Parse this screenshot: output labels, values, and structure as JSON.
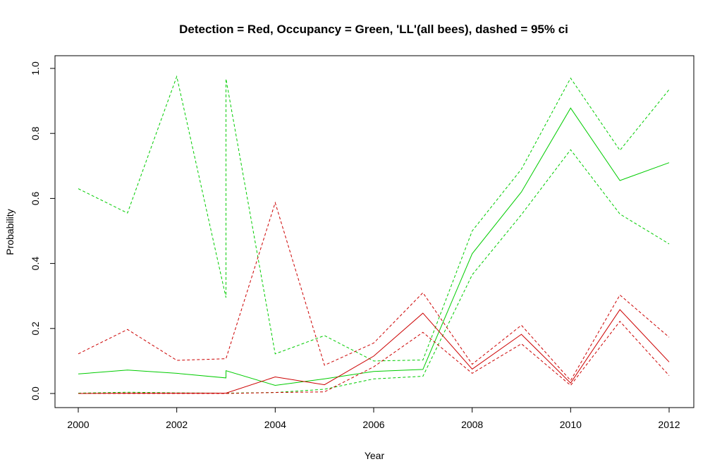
{
  "chart_data": {
    "type": "line",
    "title": "Detection = Red, Occupancy = Green, 'LL'(all bees), dashed = 95% ci",
    "xlabel": "Year",
    "ylabel": "Probability",
    "xlim": [
      2000,
      2012
    ],
    "ylim": [
      0,
      1
    ],
    "x_ticks": [
      2000,
      2002,
      2004,
      2006,
      2008,
      2010,
      2012
    ],
    "y_ticks": [
      0.0,
      0.2,
      0.4,
      0.6,
      0.8,
      1.0
    ],
    "y_tick_labels": [
      "0.0",
      "0.2",
      "0.4",
      "0.6",
      "0.8",
      "1.0"
    ],
    "grid": false,
    "series": [
      {
        "color": "#00cc00",
        "dashed": false,
        "points": [
          [
            2000,
            0.06
          ],
          [
            2001,
            0.072
          ],
          [
            2002,
            0.062
          ],
          [
            2003,
            0.048
          ],
          [
            2003,
            0.07
          ],
          [
            2004,
            0.025
          ],
          [
            2005,
            0.045
          ],
          [
            2006,
            0.068
          ],
          [
            2007,
            0.074
          ],
          [
            2008,
            0.43
          ],
          [
            2009,
            0.62
          ],
          [
            2010,
            0.878
          ],
          [
            2011,
            0.655
          ],
          [
            2012,
            0.71
          ]
        ]
      },
      {
        "color": "#00cc00",
        "dashed": true,
        "points": [
          [
            2000,
            0.63
          ],
          [
            2001,
            0.555
          ],
          [
            2002,
            0.975
          ],
          [
            2003,
            0.295
          ],
          [
            2003,
            0.968
          ],
          [
            2004,
            0.122
          ],
          [
            2005,
            0.178
          ],
          [
            2006,
            0.1
          ],
          [
            2007,
            0.103
          ],
          [
            2008,
            0.5
          ],
          [
            2009,
            0.69
          ],
          [
            2010,
            0.97
          ],
          [
            2011,
            0.748
          ],
          [
            2012,
            0.935
          ]
        ]
      },
      {
        "color": "#00cc00",
        "dashed": true,
        "points": [
          [
            2000,
            0.001
          ],
          [
            2001,
            0.004
          ],
          [
            2002,
            0.002
          ],
          [
            2003,
            0.001
          ],
          [
            2004,
            0.003
          ],
          [
            2005,
            0.013
          ],
          [
            2006,
            0.045
          ],
          [
            2007,
            0.053
          ],
          [
            2008,
            0.365
          ],
          [
            2009,
            0.55
          ],
          [
            2010,
            0.75
          ],
          [
            2011,
            0.552
          ],
          [
            2012,
            0.46
          ]
        ]
      },
      {
        "color": "#cc0000",
        "dashed": false,
        "points": [
          [
            2000,
            0.0
          ],
          [
            2001,
            0.001
          ],
          [
            2002,
            0.001
          ],
          [
            2003,
            0.001
          ],
          [
            2004,
            0.051
          ],
          [
            2005,
            0.027
          ],
          [
            2006,
            0.115
          ],
          [
            2007,
            0.247
          ],
          [
            2008,
            0.075
          ],
          [
            2009,
            0.182
          ],
          [
            2010,
            0.032
          ],
          [
            2011,
            0.258
          ],
          [
            2012,
            0.097
          ]
        ]
      },
      {
        "color": "#cc0000",
        "dashed": true,
        "points": [
          [
            2000,
            0.122
          ],
          [
            2001,
            0.197
          ],
          [
            2002,
            0.102
          ],
          [
            2003,
            0.107
          ],
          [
            2004,
            0.587
          ],
          [
            2005,
            0.087
          ],
          [
            2006,
            0.155
          ],
          [
            2007,
            0.31
          ],
          [
            2008,
            0.09
          ],
          [
            2009,
            0.21
          ],
          [
            2010,
            0.04
          ],
          [
            2011,
            0.303
          ],
          [
            2012,
            0.173
          ]
        ]
      },
      {
        "color": "#cc0000",
        "dashed": true,
        "points": [
          [
            2000,
            0.0
          ],
          [
            2001,
            0.0
          ],
          [
            2002,
            0.0
          ],
          [
            2003,
            0.0
          ],
          [
            2004,
            0.003
          ],
          [
            2005,
            0.005
          ],
          [
            2006,
            0.082
          ],
          [
            2007,
            0.188
          ],
          [
            2008,
            0.062
          ],
          [
            2009,
            0.153
          ],
          [
            2010,
            0.025
          ],
          [
            2011,
            0.222
          ],
          [
            2012,
            0.055
          ]
        ]
      }
    ]
  }
}
